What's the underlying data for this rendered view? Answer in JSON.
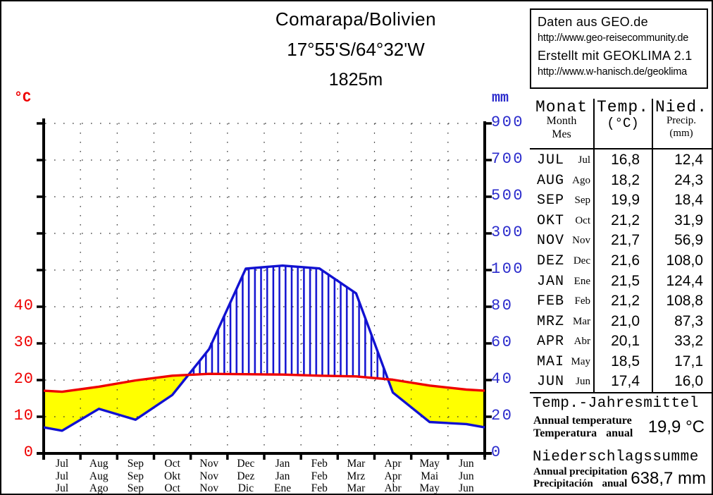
{
  "header": {
    "station": "Comarapa/Bolivien",
    "coordinates": "17°55'S/64°32'W",
    "elevation": "1825m"
  },
  "credits": {
    "source": "Daten aus GEO.de",
    "source_url": "http://www.geo-reisecommunity.de",
    "tool": "Erstellt mit GEOKLIMA 2.1",
    "tool_url": "http://www.w-hanisch.de/geoklima"
  },
  "table": {
    "header": {
      "monat": "Monat",
      "month": "Month",
      "mes": "Mes",
      "temp": "Temp.",
      "temp_unit": "(°C)",
      "nied": "Nied.",
      "precip": "Precip.",
      "precip_unit": "(mm)"
    },
    "rows": [
      {
        "de": "JUL",
        "es": "Jul",
        "temp": "16,8",
        "precip": "12,4"
      },
      {
        "de": "AUG",
        "es": "Ago",
        "temp": "18,2",
        "precip": "24,3"
      },
      {
        "de": "SEP",
        "es": "Sep",
        "temp": "19,9",
        "precip": "18,4"
      },
      {
        "de": "OKT",
        "es": "Oct",
        "temp": "21,2",
        "precip": "31,9"
      },
      {
        "de": "NOV",
        "es": "Nov",
        "temp": "21,7",
        "precip": "56,9"
      },
      {
        "de": "DEZ",
        "es": "Dec",
        "temp": "21,6",
        "precip": "108,0"
      },
      {
        "de": "JAN",
        "es": "Ene",
        "temp": "21,5",
        "precip": "124,4"
      },
      {
        "de": "FEB",
        "es": "Feb",
        "temp": "21,2",
        "precip": "108,8"
      },
      {
        "de": "MRZ",
        "es": "Mar",
        "temp": "21,0",
        "precip": "87,3"
      },
      {
        "de": "APR",
        "es": "Abr",
        "temp": "20,1",
        "precip": "33,2"
      },
      {
        "de": "MAI",
        "es": "May",
        "temp": "18,5",
        "precip": "17,1"
      },
      {
        "de": "JUN",
        "es": "Jun",
        "temp": "17,4",
        "precip": "16,0"
      }
    ]
  },
  "summary": {
    "temp_title": "Temp.-Jahresmittel",
    "temp_en": "Annual temperature",
    "temp_es": "Temperatura anual",
    "temp_value": "19,9 °C",
    "precip_title": "Niederschlagssumme",
    "precip_en": "Annual precipitation",
    "precip_es": "Precipitación anual",
    "precip_value": "638,7 mm"
  },
  "chart_data": {
    "type": "line",
    "title": "Comarapa/Bolivien 17°55'S/64°32'W 1825m",
    "x_month_rows": {
      "english": [
        "Jul",
        "Aug",
        "Sep",
        "Oct",
        "Nov",
        "Dec",
        "Jan",
        "Feb",
        "Mar",
        "Apr",
        "May",
        "Jun"
      ],
      "german": [
        "Jul",
        "Aug",
        "Sep",
        "Okt",
        "Nov",
        "Dez",
        "Jan",
        "Feb",
        "Mrz",
        "Apr",
        "Mai",
        "Jun"
      ],
      "spanish": [
        "Jul",
        "Ago",
        "Sep",
        "Oct",
        "Nov",
        "Dic",
        "Ene",
        "Feb",
        "Mar",
        "Abr",
        "May",
        "Jun"
      ]
    },
    "series": [
      {
        "name": "temperature",
        "unit": "°C",
        "color": "#ee0000",
        "values": [
          16.8,
          18.2,
          19.9,
          21.2,
          21.7,
          21.6,
          21.5,
          21.2,
          21.0,
          20.1,
          18.5,
          17.4
        ]
      },
      {
        "name": "precipitation",
        "unit": "mm",
        "color": "#1111d1",
        "values": [
          12.4,
          24.3,
          18.4,
          31.9,
          56.9,
          108.0,
          124.4,
          108.8,
          87.3,
          33.2,
          17.1,
          16.0
        ]
      }
    ],
    "left_axis": {
      "unit": "°C",
      "ticks": [
        0,
        10,
        20,
        30,
        40
      ],
      "color": "#ee0000"
    },
    "right_axis": {
      "unit": "mm",
      "ticks": [
        0,
        20,
        40,
        60,
        80,
        100,
        300,
        500,
        700,
        900
      ],
      "color": "#2b2bcc",
      "note": "scale compressed above 100 mm"
    },
    "walter_lieth": {
      "dry_fill": "#ffff00",
      "humid_hatch_color": "#1111d1",
      "scale_note": "10 °C = 20 mm"
    },
    "grid": "dotted",
    "annual_temperature_c": 19.9,
    "annual_precipitation_mm": 638.7
  }
}
